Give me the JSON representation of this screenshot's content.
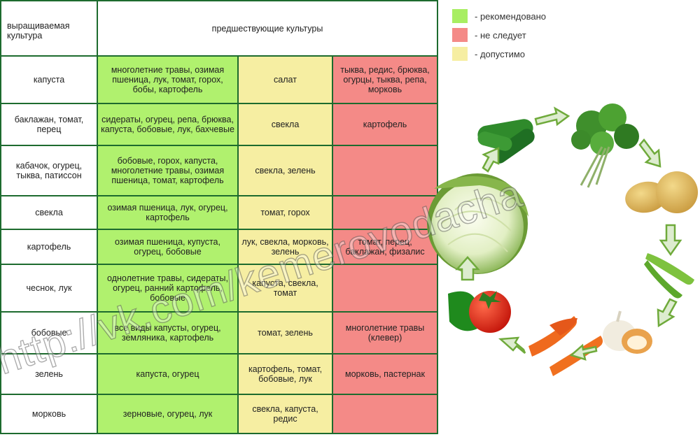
{
  "table": {
    "header_crop": "выращиваемая культура",
    "header_prev": "предшествующие культуры",
    "rows": [
      {
        "crop": "капуста",
        "good": "многолетние травы, озимая пшеница, лук, томат, горох, бобы, картофель",
        "ok": "салат",
        "bad": "тыква, редис, брюква, огурцы, тыква, репа, морковь"
      },
      {
        "crop": "баклажан, томат, перец",
        "good": "сидераты, огурец, репа, брюква, капуста, бобовые, лук, бахчевые",
        "ok": "свекла",
        "bad": "картофель"
      },
      {
        "crop": "кабачок, огурец, тыква, патиссон",
        "good": "бобовые, горох, капуста, многолетние травы, озимая пшеница, томат, картофель",
        "ok": "свекла, зелень",
        "bad": ""
      },
      {
        "crop": "свекла",
        "good": "озимая пшеница, лук, огурец, картофель",
        "ok": "томат, горох",
        "bad": ""
      },
      {
        "crop": "картофель",
        "good": "озимая пшеница, купуста, огурец, бобовые",
        "ok": "лук, свекла, морковь, зелень",
        "bad": "томат, перец, баклажан, физалис"
      },
      {
        "crop": "чеснок, лук",
        "good": "однолетние травы, сидераты, огурец, ранний картофель, бобовые",
        "ok": "капуста, свекла, томат",
        "bad": ""
      },
      {
        "crop": "бобовые",
        "good": "все виды капусты, огурец, земляника, картофель",
        "ok": "томат, зелень",
        "bad": "многолетние травы (клевер)"
      },
      {
        "crop": "зелень",
        "good": "капуста, огурец",
        "ok": "картофель, томат, бобовые, лук",
        "bad": "морковь, пастернак"
      },
      {
        "crop": "морковь",
        "good": "зерновые, огурец, лук",
        "ok": "свекла, капуста, редис",
        "bad": ""
      }
    ]
  },
  "legend": [
    {
      "color": "#a8ee62",
      "label": "- рекомендовано"
    },
    {
      "color": "#f48a87",
      "label": "- не следует"
    },
    {
      "color": "#f6eea2",
      "label": "- допустимо"
    }
  ],
  "watermark": "http://vk.com/kemerovodacha"
}
